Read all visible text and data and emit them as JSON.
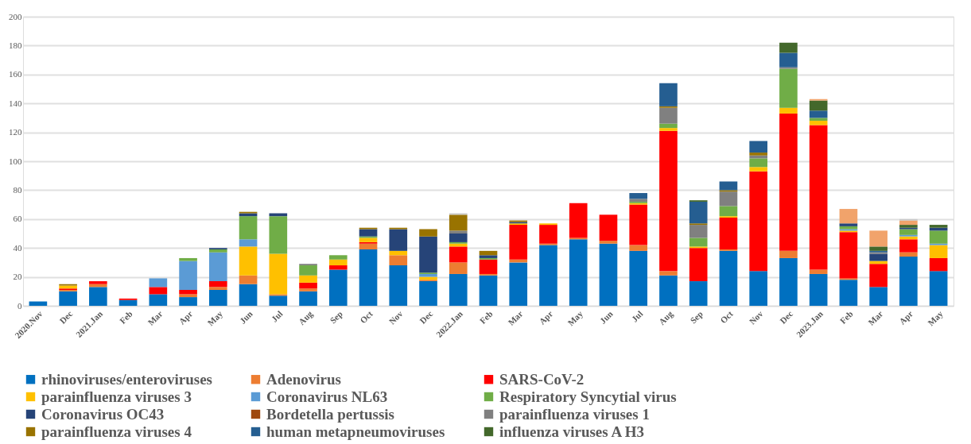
{
  "chart_data": {
    "type": "bar",
    "stacked": true,
    "grid": "y",
    "legend": "bottom",
    "categories": [
      "2020.Nov",
      "Dec",
      "2021.Jan",
      "Feb",
      "Mar",
      "Apr",
      "May",
      "Jun",
      "Jul",
      "Aug",
      "Sep",
      "Oct",
      "Nov",
      "Dec",
      "2022.Jan",
      "Feb",
      "Mar",
      "Apr",
      "May",
      "Jun",
      "Jul",
      "Aug",
      "Sep",
      "Oct",
      "Nov",
      "Dec",
      "2023.Jan",
      "Feb",
      "Mar",
      "Apr",
      "May"
    ],
    "ylim": [
      0,
      200
    ],
    "yticks": [
      0,
      20,
      40,
      60,
      80,
      100,
      120,
      140,
      160,
      180,
      200
    ],
    "series": [
      {
        "name": "rhinoviruses/enteroviruses",
        "color": "#0070c0",
        "values": [
          3,
          10,
          13,
          4,
          8,
          6,
          11,
          15,
          7,
          10,
          25,
          39,
          28,
          17,
          22,
          21,
          30,
          42,
          46,
          43,
          38,
          21,
          17,
          38,
          24,
          33,
          22,
          18,
          13,
          34,
          24
        ]
      },
      {
        "name": "Adenovirus",
        "color": "#ed7d31",
        "values": [
          null,
          1,
          2,
          null,
          null,
          2,
          2,
          6,
          1,
          2,
          null,
          4,
          7,
          1,
          8,
          1,
          2,
          1,
          1,
          2,
          4,
          3,
          null,
          1,
          null,
          5,
          3,
          1,
          null,
          3,
          null
        ]
      },
      {
        "name": "SARS-CoV-2",
        "color": "#ff0000",
        "values": [
          null,
          1,
          2,
          1,
          5,
          3,
          4,
          null,
          null,
          4,
          3,
          1,
          null,
          null,
          11,
          10,
          24,
          13,
          24,
          18,
          28,
          97,
          23,
          22,
          69,
          95,
          100,
          32,
          16,
          9,
          9
        ]
      },
      {
        "name": "parainfluenza viruses 3",
        "color": "#ffc000",
        "values": [
          null,
          2,
          null,
          null,
          null,
          null,
          null,
          20,
          28,
          5,
          4,
          3,
          3,
          2,
          2,
          null,
          1,
          1,
          null,
          null,
          1,
          2,
          1,
          1,
          3,
          4,
          3,
          1,
          2,
          2,
          9
        ]
      },
      {
        "name": "Coronavirus NL63",
        "color": "#5b9bd5",
        "values": [
          null,
          null,
          null,
          null,
          6,
          20,
          20,
          5,
          null,
          null,
          null,
          null,
          null,
          2,
          null,
          null,
          null,
          null,
          null,
          null,
          null,
          null,
          null,
          null,
          null,
          null,
          null,
          1,
          null,
          1,
          1
        ]
      },
      {
        "name": "Respiratory Syncytial virus",
        "color": "#70ad47",
        "values": [
          null,
          null,
          null,
          null,
          null,
          2,
          2,
          16,
          26,
          7,
          3,
          1,
          null,
          1,
          1,
          1,
          null,
          null,
          null,
          null,
          1,
          3,
          6,
          7,
          6,
          27,
          2,
          2,
          null,
          4,
          9
        ]
      },
      {
        "name": "Coronavirus OC43",
        "color": "#264478",
        "values": [
          null,
          null,
          null,
          null,
          null,
          null,
          1,
          2,
          2,
          null,
          null,
          5,
          15,
          25,
          6,
          2,
          1,
          null,
          null,
          null,
          null,
          null,
          null,
          null,
          null,
          null,
          null,
          2,
          5,
          1,
          2
        ]
      },
      {
        "name": "Bordetella pertussis",
        "color": "#9e480e",
        "values": [
          null,
          null,
          null,
          null,
          null,
          null,
          null,
          null,
          null,
          null,
          null,
          null,
          null,
          null,
          null,
          null,
          null,
          null,
          null,
          null,
          null,
          null,
          null,
          null,
          null,
          null,
          null,
          null,
          null,
          null,
          null
        ]
      },
      {
        "name": "parainfluenza viruses 1",
        "color": "#808080",
        "values": [
          null,
          null,
          null,
          null,
          null,
          null,
          null,
          null,
          null,
          1,
          null,
          null,
          null,
          null,
          2,
          null,
          null,
          null,
          null,
          null,
          2,
          11,
          9,
          10,
          2,
          1,
          null,
          null,
          1,
          null,
          null
        ]
      },
      {
        "name": "parainfluenza viruses  4",
        "color": "#997300",
        "values": [
          null,
          1,
          null,
          null,
          null,
          null,
          null,
          1,
          null,
          null,
          null,
          1,
          1,
          5,
          11,
          3,
          1,
          null,
          null,
          null,
          null,
          1,
          1,
          1,
          2,
          null,
          null,
          null,
          null,
          null,
          null
        ]
      },
      {
        "name": "human metapneumoviruses",
        "color": "#255e91",
        "values": [
          null,
          null,
          null,
          null,
          null,
          null,
          null,
          null,
          null,
          null,
          null,
          null,
          null,
          null,
          null,
          null,
          null,
          null,
          null,
          null,
          4,
          16,
          15,
          6,
          8,
          10,
          5,
          null,
          1,
          null,
          null
        ]
      },
      {
        "name": "influenza viruses A H3",
        "color": "#43682b",
        "values": [
          null,
          null,
          null,
          null,
          null,
          null,
          null,
          null,
          null,
          null,
          null,
          null,
          null,
          null,
          null,
          null,
          null,
          null,
          null,
          null,
          null,
          null,
          1,
          null,
          null,
          7,
          7,
          null,
          3,
          2,
          2
        ]
      },
      {
        "color": "#f1a36b",
        "values": [
          null,
          null,
          null,
          null,
          null,
          null,
          null,
          null,
          null,
          null,
          null,
          null,
          null,
          null,
          null,
          null,
          null,
          null,
          null,
          null,
          null,
          null,
          null,
          null,
          null,
          null,
          1,
          10,
          11,
          3,
          null
        ]
      },
      {
        "color": "#c9c9c9",
        "values": [
          null,
          null,
          null,
          null,
          null,
          null,
          null,
          null,
          null,
          null,
          null,
          null,
          null,
          null,
          1,
          null,
          null,
          null,
          null,
          null,
          null,
          null,
          null,
          null,
          null,
          null,
          null,
          null,
          null,
          1,
          null
        ]
      }
    ]
  }
}
